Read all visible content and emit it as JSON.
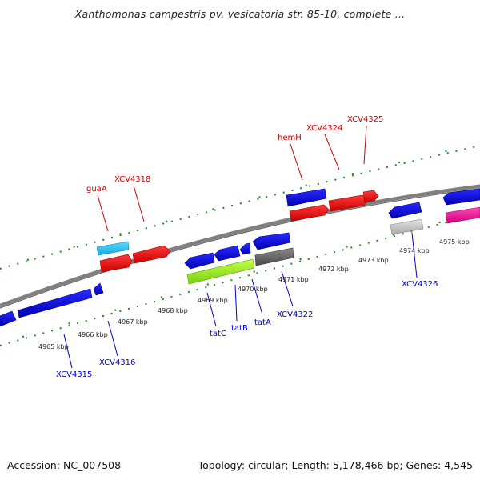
{
  "title": "Xanthomonas campestris pv. vesicatoria str. 85-10, complete ...",
  "accession": "Accession: NC_007508",
  "topology": "Topology: circular; Length: 5,178,466 bp; Genes: 4,545",
  "colors": {
    "plus_strand_label": "#cc0000",
    "minus_strand_label": "#0000cc",
    "tick": "#1e8c1e",
    "backbone": "#808080"
  },
  "kbp_labels": [
    "4965 kbp",
    "4966 kbp",
    "4967 kbp",
    "4968 kbp",
    "4969 kbp",
    "4970 kbp",
    "4971 kbp",
    "4972 kbp",
    "4973 kbp",
    "4974 kbp",
    "4975 kbp"
  ],
  "top_labels": [
    "guaA",
    "XCV4318",
    "hemH",
    "XCV4324",
    "XCV4325"
  ],
  "bottom_labels": [
    "XCV4315",
    "XCV4316",
    "tatC",
    "tatB",
    "tatA",
    "XCV4322",
    "XCV4326"
  ]
}
